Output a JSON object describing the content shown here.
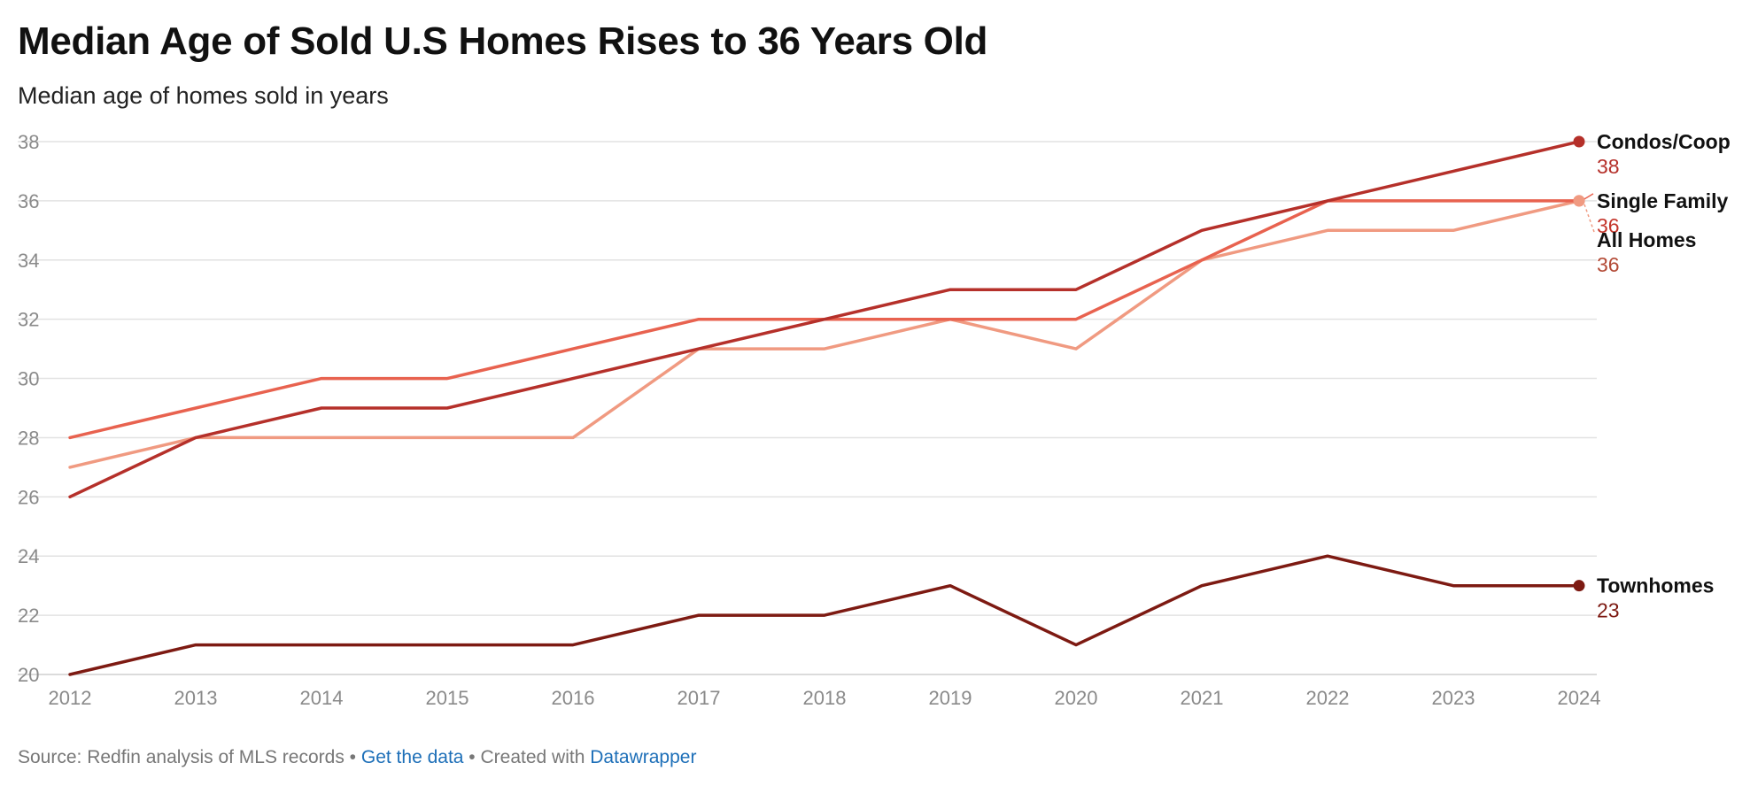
{
  "chart_data": {
    "type": "line",
    "title": "Median Age of Sold U.S Homes Rises to 36 Years Old",
    "subtitle": "Median age of homes sold in years",
    "x": [
      "2012",
      "2013",
      "2014",
      "2015",
      "2016",
      "2017",
      "2018",
      "2019",
      "2020",
      "2021",
      "2022",
      "2023",
      "2024"
    ],
    "ylim": [
      20,
      38
    ],
    "yticks": [
      "38",
      "36",
      "34",
      "32",
      "30",
      "28",
      "26",
      "24",
      "22",
      "20"
    ],
    "grid": true,
    "series": [
      {
        "name": "Condos/Coop",
        "values": [
          26,
          28,
          29,
          29,
          30,
          31,
          32,
          33,
          33,
          35,
          36,
          37,
          38
        ],
        "color": "#b5302a",
        "end_label": "38",
        "label_color": "#b5302a"
      },
      {
        "name": "Single Family",
        "values": [
          28,
          29,
          30,
          30,
          31,
          32,
          32,
          32,
          32,
          34,
          36,
          36,
          36
        ],
        "color": "#e8624f",
        "end_label": "36",
        "label_color": "#c4352b"
      },
      {
        "name": "All Homes",
        "values": [
          27,
          28,
          28,
          28,
          28,
          31,
          31,
          32,
          31,
          34,
          35,
          35,
          36
        ],
        "color": "#f09a81",
        "end_label": "36",
        "label_color": "#b34a36"
      },
      {
        "name": "Townhomes",
        "values": [
          20,
          21,
          21,
          21,
          21,
          22,
          22,
          23,
          21,
          23,
          24,
          23,
          23
        ],
        "color": "#7d1a12",
        "end_label": "23",
        "label_color": "#7d1a12"
      }
    ]
  },
  "footer": {
    "source": "Source: Redfin analysis of MLS records",
    "sep1": " • ",
    "get_data": "Get the data",
    "sep2": " • Created with ",
    "datawrapper": "Datawrapper"
  },
  "colors": {
    "grid": "#e2e2e2",
    "link": "#1d6fb8"
  }
}
